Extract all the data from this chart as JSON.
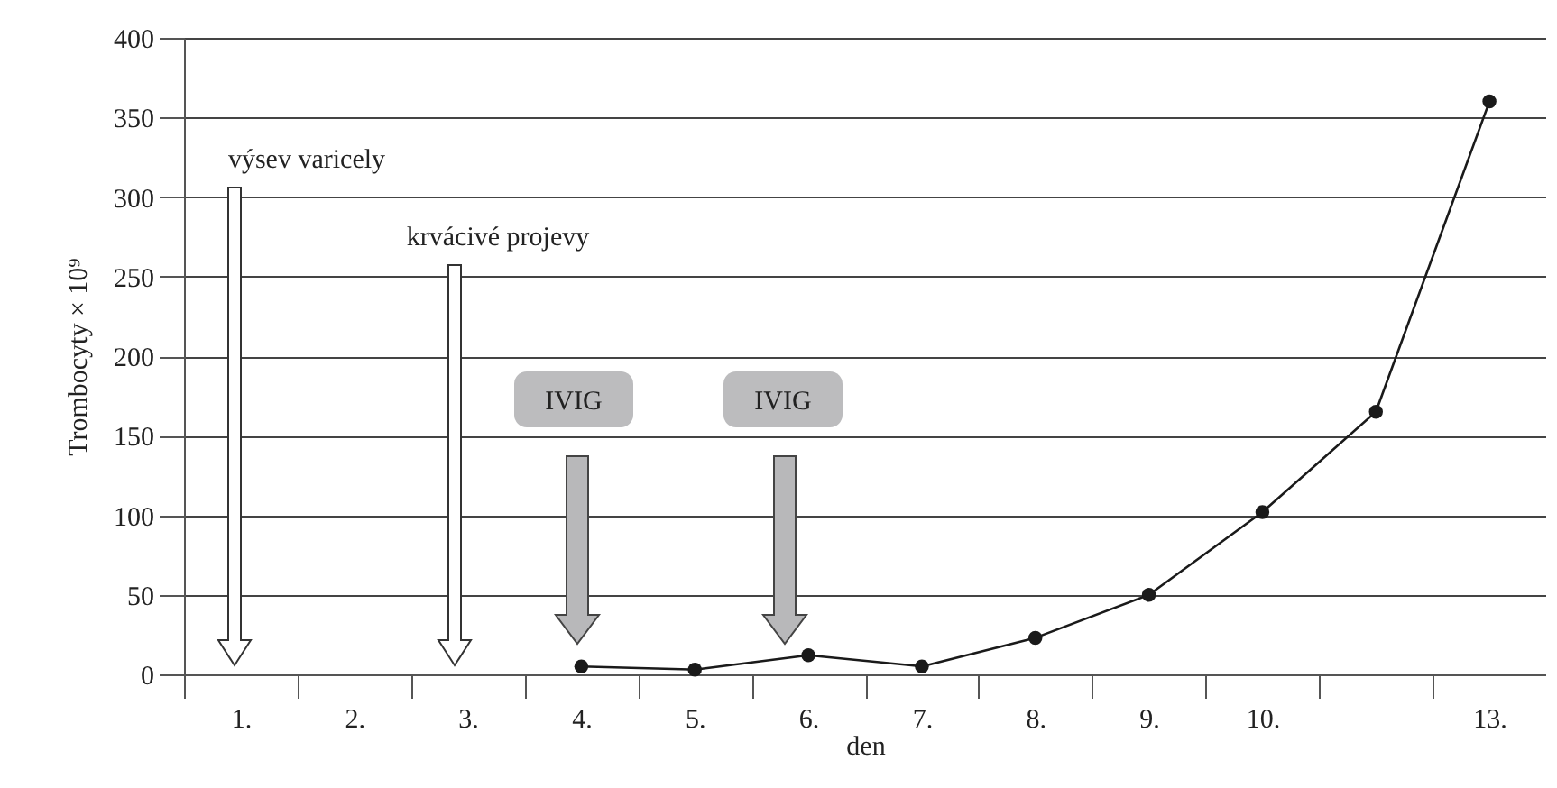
{
  "chart_data": {
    "type": "line",
    "xlabel": "den",
    "ylabel": "Trombocyty × 10⁹",
    "categories": [
      "1.",
      "2.",
      "3.",
      "4.",
      "5.",
      "6.",
      "7.",
      "8.",
      "9.",
      "10.",
      null,
      "13."
    ],
    "series": [
      {
        "color": "#1a1a1a",
        "values": [
          null,
          null,
          null,
          5,
          3,
          12,
          5,
          23,
          50,
          102,
          165,
          360
        ]
      }
    ],
    "ylim": [
      0,
      400
    ],
    "yticks": [
      0,
      50,
      100,
      150,
      200,
      250,
      300,
      350,
      400
    ],
    "grid": "y",
    "legend": false,
    "marker": "circle",
    "line_style": "solid",
    "annotations": [
      "výsev varicely",
      "krvácivé projevy",
      "IVIG",
      "IVIG"
    ]
  }
}
